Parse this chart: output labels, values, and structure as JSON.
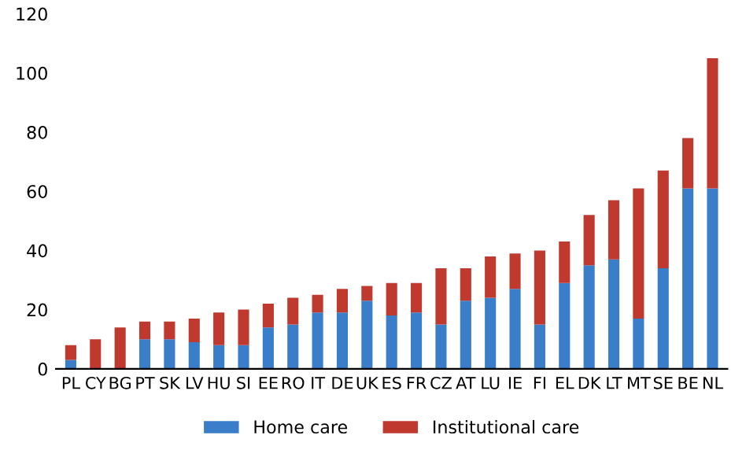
{
  "chart_data": {
    "type": "bar",
    "stacked": true,
    "categories": [
      "PL",
      "CY",
      "BG",
      "PT",
      "SK",
      "LV",
      "HU",
      "SI",
      "EE",
      "RO",
      "IT",
      "DE",
      "UK",
      "ES",
      "FR",
      "CZ",
      "AT",
      "LU",
      "IE",
      "FI",
      "EL",
      "DK",
      "LT",
      "MT",
      "SE",
      "BE",
      "NL"
    ],
    "series": [
      {
        "name": "Home care",
        "color": "#3a7dc9",
        "values": [
          3,
          0,
          0,
          10,
          10,
          9,
          8,
          8,
          14,
          15,
          19,
          19,
          23,
          18,
          19,
          15,
          23,
          24,
          27,
          15,
          29,
          35,
          37,
          17,
          34,
          61,
          61
        ]
      },
      {
        "name": "Institutional care",
        "color": "#c0392f",
        "values": [
          5,
          10,
          14,
          6,
          6,
          8,
          11,
          12,
          8,
          9,
          6,
          8,
          5,
          11,
          10,
          19,
          11,
          14,
          12,
          25,
          14,
          17,
          20,
          44,
          33,
          17,
          44
        ]
      }
    ],
    "ylim": [
      0,
      120
    ],
    "yticks": [
      0,
      20,
      40,
      60,
      80,
      100,
      120
    ],
    "grid": false,
    "legend": "bottom"
  }
}
